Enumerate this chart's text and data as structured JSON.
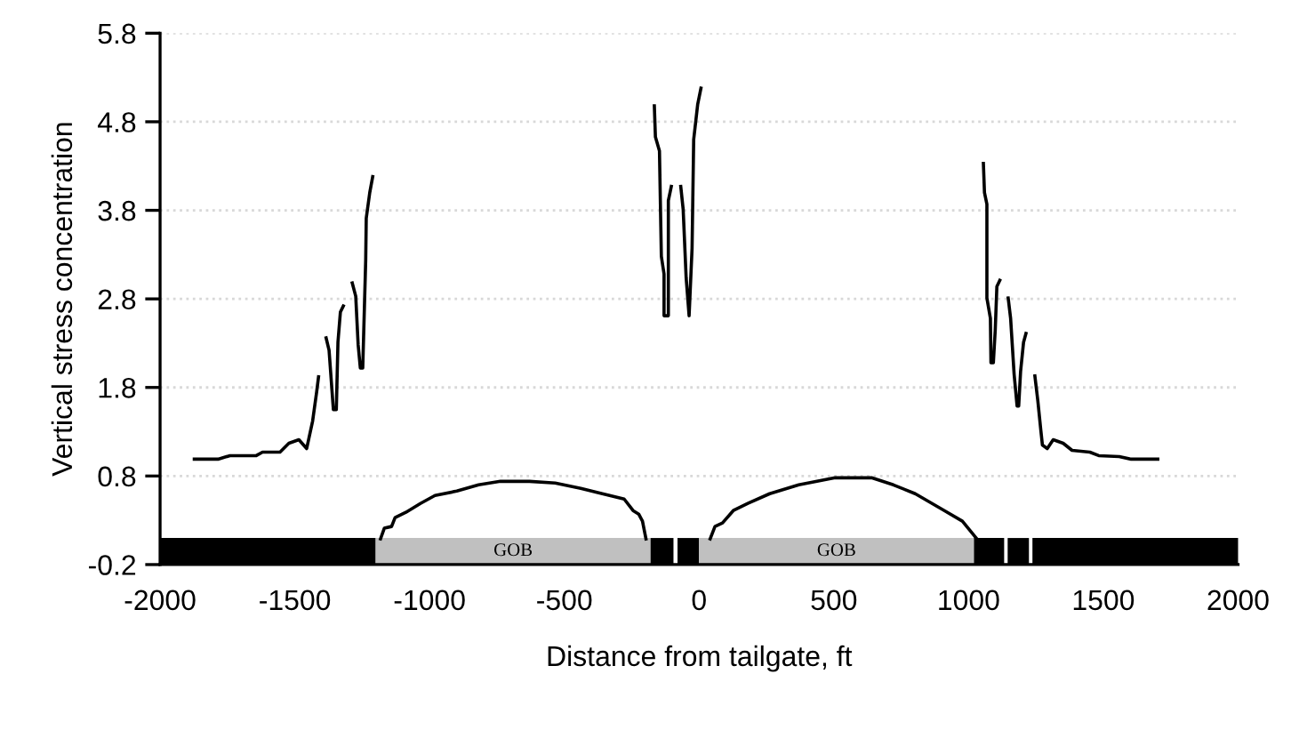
{
  "chart_data": {
    "type": "line",
    "xlabel": "Distance from tailgate, ft",
    "ylabel": "Vertical stress concentration",
    "xlim": [
      -2000,
      2000
    ],
    "xticks": [
      -2000,
      -1500,
      -1000,
      -500,
      0,
      500,
      1000,
      1500,
      2000
    ],
    "ylim": [
      -0.2,
      5.8
    ],
    "yticks": [
      -0.2,
      0.8,
      1.8,
      2.8,
      3.8,
      4.8,
      5.8
    ],
    "grid": "y",
    "legend": false,
    "marker": "none",
    "line_style": "solid",
    "series": [
      {
        "color": "#000000",
        "x": [
          -1873,
          -1785,
          -1741,
          -1643,
          -1620,
          -1555,
          -1522,
          -1485,
          -1456,
          -1434,
          -1419,
          -1412,
          -1400,
          -1384,
          -1373,
          -1357,
          -1346,
          -1340,
          -1331,
          -1320,
          -1300,
          -1287,
          -1274,
          -1265,
          -1257,
          -1248,
          -1237,
          -1235,
          -1222,
          -1211,
          -1195,
          -1182,
          -1168,
          -1141,
          -1128,
          -1088,
          -1034,
          -980,
          -899,
          -818,
          -737,
          -629,
          -534,
          -439,
          -359,
          -278,
          -245,
          -224,
          -210,
          -197,
          -180,
          -166,
          -162,
          -147,
          -140,
          -130,
          -130,
          -114,
          -114,
          -103,
          -85,
          -68,
          -59,
          -48,
          -37,
          -26,
          -20,
          -5,
          7,
          25,
          41,
          59,
          87,
          127,
          181,
          262,
          370,
          505,
          640,
          721,
          802,
          910,
          977,
          1031,
          1045,
          1055,
          1059,
          1068,
          1068,
          1081,
          1083,
          1092,
          1099,
          1105,
          1116,
          1130,
          1147,
          1156,
          1169,
          1180,
          1186,
          1193,
          1204,
          1213,
          1230,
          1246,
          1257,
          1268,
          1274,
          1292,
          1314,
          1351,
          1384,
          1450,
          1483,
          1559,
          1603,
          1702
        ],
        "values": [
          0.99,
          0.99,
          1.03,
          1.03,
          1.07,
          1.07,
          1.17,
          1.21,
          1.11,
          1.42,
          1.75,
          1.92,
          null,
          2.36,
          2.22,
          1.55,
          1.55,
          2.31,
          2.65,
          2.72,
          null,
          2.98,
          2.83,
          2.28,
          2.02,
          2.02,
          3.24,
          3.71,
          4.0,
          4.18,
          null,
          0.09,
          0.21,
          0.23,
          0.33,
          0.39,
          0.49,
          0.58,
          0.63,
          0.7,
          0.74,
          0.74,
          0.72,
          0.66,
          0.6,
          0.54,
          0.41,
          0.37,
          0.29,
          0.09,
          null,
          4.98,
          4.63,
          4.47,
          3.28,
          3.08,
          2.61,
          2.61,
          3.91,
          4.07,
          null,
          4.07,
          3.81,
          3.04,
          2.61,
          3.37,
          4.6,
          5.0,
          5.18,
          null,
          0.09,
          0.23,
          0.27,
          0.41,
          0.49,
          0.6,
          0.7,
          0.78,
          0.78,
          0.7,
          0.6,
          0.41,
          0.29,
          0.09,
          null,
          4.33,
          4.0,
          3.87,
          2.81,
          2.58,
          2.08,
          2.08,
          2.45,
          2.94,
          3.01,
          null,
          2.81,
          2.58,
          1.95,
          1.59,
          1.59,
          1.98,
          2.31,
          2.41,
          null,
          1.93,
          1.65,
          1.32,
          1.15,
          1.11,
          1.21,
          1.17,
          1.09,
          1.07,
          1.03,
          1.02,
          0.99,
          0.99
        ]
      }
    ],
    "bands": [
      {
        "axis": "x",
        "from": -2000,
        "to": -1200,
        "color": "#000000",
        "label": null
      },
      {
        "axis": "x",
        "from": -1200,
        "to": -180,
        "color": "#c0c0c0",
        "label": "GOB"
      },
      {
        "axis": "x",
        "from": -180,
        "to": -95,
        "color": "#000000",
        "label": null
      },
      {
        "axis": "x",
        "from": -80,
        "to": 0,
        "color": "#000000",
        "label": null
      },
      {
        "axis": "x",
        "from": 0,
        "to": 1020,
        "color": "#c0c0c0",
        "label": "GOB"
      },
      {
        "axis": "x",
        "from": 1020,
        "to": 1132,
        "color": "#000000",
        "label": null
      },
      {
        "axis": "x",
        "from": 1145,
        "to": 1224,
        "color": "#000000",
        "label": null
      },
      {
        "axis": "x",
        "from": 1237,
        "to": 2000,
        "color": "#000000",
        "label": null
      }
    ]
  }
}
